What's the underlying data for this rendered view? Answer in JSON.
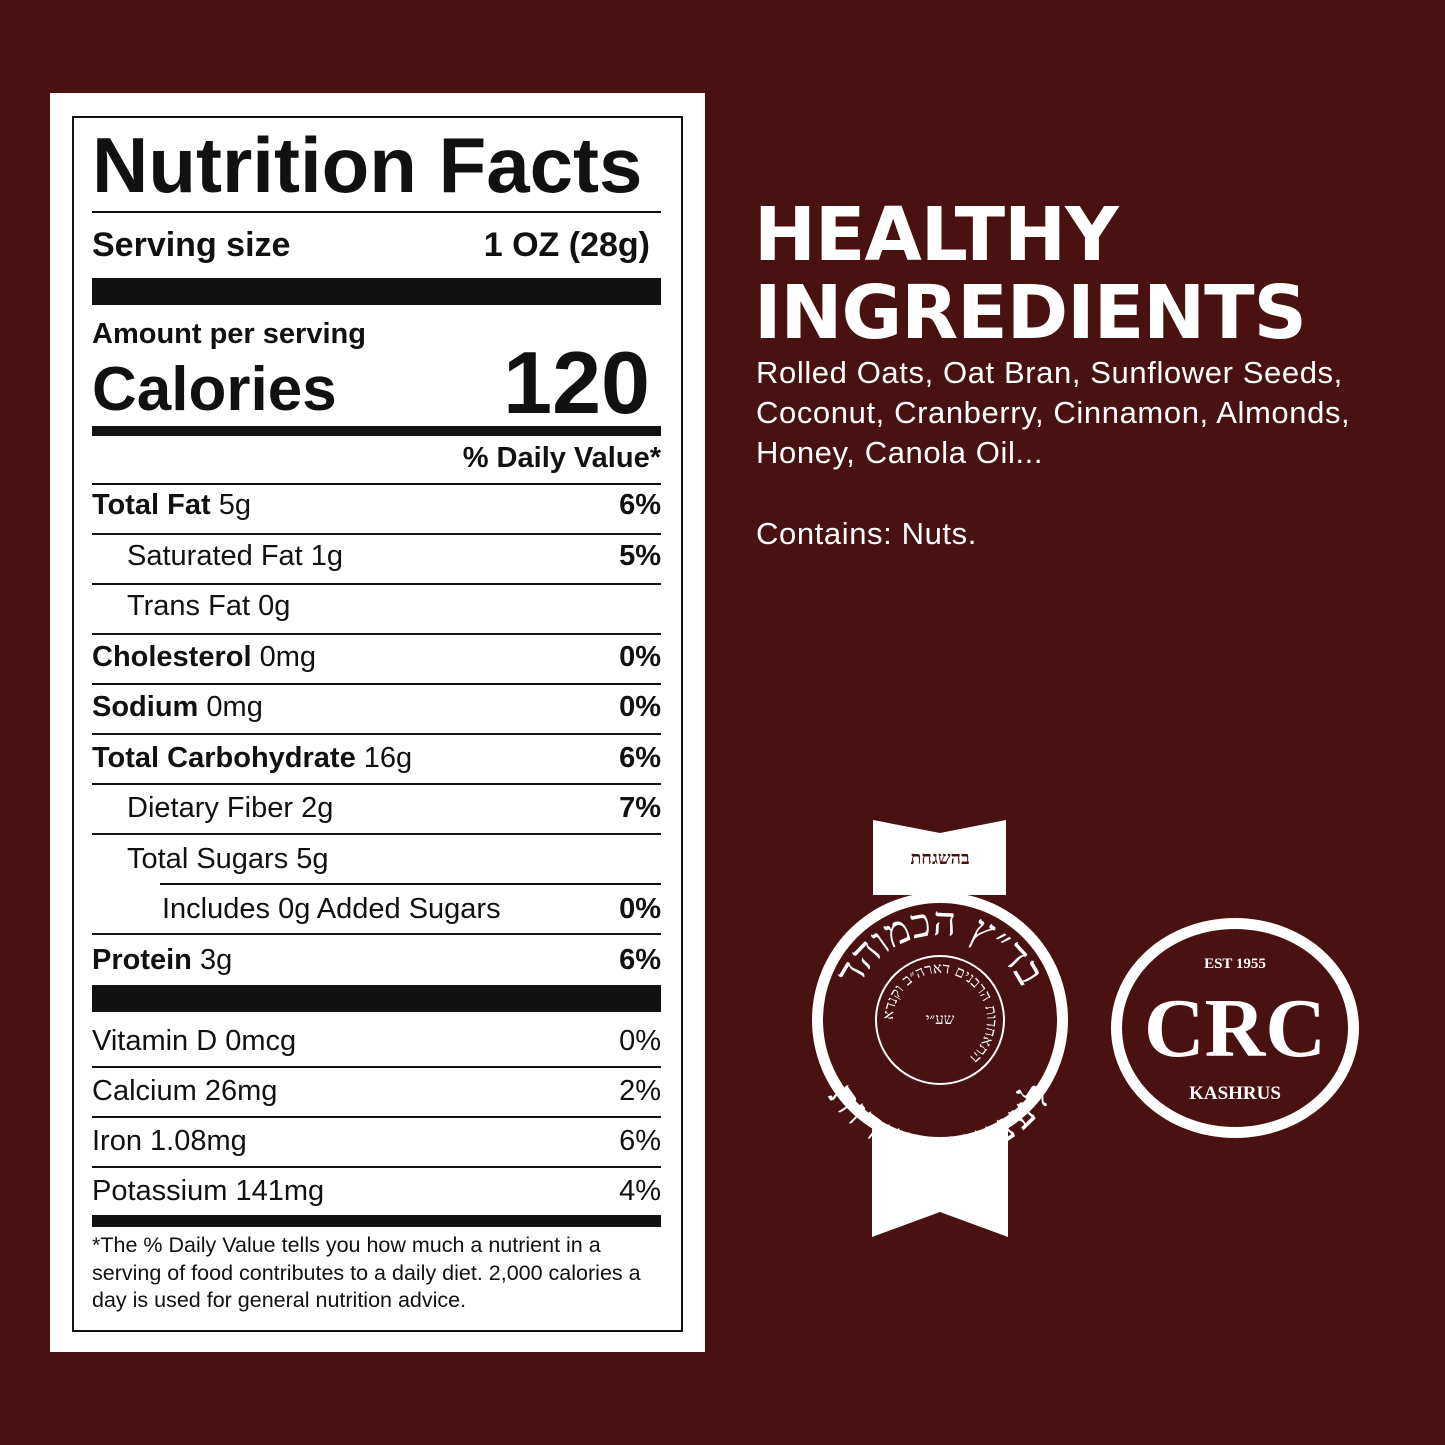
{
  "label": {
    "title": "Nutrition Facts",
    "serving_size_label": "Serving size",
    "serving_size_value": "1 OZ (28g)",
    "amount_per_serving": "Amount per serving",
    "calories_label": "Calories",
    "calories_value": "120",
    "daily_value_header": "% Daily Value*",
    "nutrients": [
      {
        "name": "Total Fat",
        "amount": "5g",
        "dv": "6%"
      },
      {
        "name": "Saturated Fat",
        "amount": "1g",
        "dv": "5%"
      },
      {
        "name": "Trans Fat",
        "amount": "0g"
      },
      {
        "name": "Cholesterol",
        "amount": "0mg",
        "dv": "0%"
      },
      {
        "name": "Sodium",
        "amount": "0mg",
        "dv": "0%"
      },
      {
        "name": "Total Carbohydrate",
        "amount": "16g",
        "dv": "6%"
      },
      {
        "name": "Dietary Fiber",
        "amount": "2g",
        "dv": "7%"
      },
      {
        "name": "Total Sugars",
        "amount": "5g"
      },
      {
        "name": "Includes 0g Added Sugars",
        "dv": "0%"
      },
      {
        "name": "Protein",
        "amount": "3g",
        "dv": "6%"
      }
    ],
    "vitamins": [
      {
        "name": "Vitamin D",
        "amount": "0mcg",
        "dv": "0%"
      },
      {
        "name": "Calcium",
        "amount": "26mg",
        "dv": "2%"
      },
      {
        "name": "Iron",
        "amount": "1.08mg",
        "dv": "6%"
      },
      {
        "name": "Potassium",
        "amount": "141mg",
        "dv": "4%"
      }
    ],
    "footnote": "*The % Daily Value tells you how much a nutrient in a serving of food contributes to a daily diet. 2,000 calories a day is used for general nutrition advice."
  },
  "ingredients": {
    "heading": "HEALTHY INGREDIENTS",
    "list": "Rolled Oats, Oat Bran, Sunflower Seeds, Coconut, Cranberry, Cinnamon, Almonds, Honey, Canola Oil...",
    "allergens": "Contains: Nuts."
  },
  "badges": {
    "kosher": {
      "supervision": "בהשגחת",
      "ring_top": "בד״ץ הכמוהד",
      "ring_bottom": "לענייני כשרות",
      "inner_ring": "התאחדות הרבנים דארה״ב וקנדא",
      "center": "שע״י"
    },
    "crc": {
      "est": "EST 1955",
      "name": "CRC",
      "subtitle": "KASHRUS"
    }
  }
}
